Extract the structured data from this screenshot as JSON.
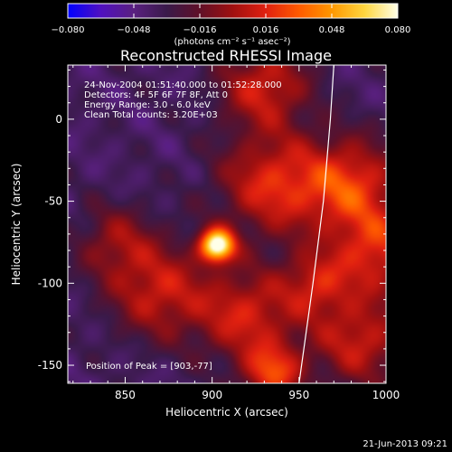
{
  "chart_data": {
    "type": "heatmap",
    "title": "Reconstructed RHESSI Image",
    "xlabel": "Heliocentric X (arcsec)",
    "ylabel": "Heliocentric Y (arcsec)",
    "xlim": [
      817,
      1000
    ],
    "ylim": [
      -161,
      33
    ],
    "x_ticks": [
      850,
      900,
      950,
      1000
    ],
    "y_ticks": [
      0,
      -50,
      -100,
      -150
    ],
    "colorbar": {
      "range": [
        -0.08,
        0.08
      ],
      "ticks": [
        "−0.080",
        "−0.048",
        "−0.016",
        "0.016",
        "0.048",
        "0.080"
      ],
      "unit_text": "(photons cm⁻² s⁻¹ asec⁻²)",
      "colormap": [
        "#0000ff",
        "#5010c0",
        "#5a2080",
        "#3a1a4a",
        "#601028",
        "#a01010",
        "#e02010",
        "#ff5a00",
        "#ff9800",
        "#ffd640",
        "#ffffe8"
      ]
    },
    "annotations": [
      "24-Nov-2004 01:51:40.000 to 01:52:28.000",
      "Detectors: 4F 5F 6F 7F 8F, Att 0",
      "Energy Range: 3.0 - 6.0 keV",
      "Clean      Total counts: 3.20E+03"
    ],
    "peak_label": "Position of Peak = [903,-77]",
    "peak": {
      "x": 903,
      "y": -77,
      "relative_intensity": 1.0
    },
    "emission_sources": [
      {
        "x": 903,
        "y": -77,
        "sigma": 7,
        "intensity": 1.0
      },
      {
        "x": 935,
        "y": -40,
        "sigma": 22,
        "intensity": 0.45
      },
      {
        "x": 980,
        "y": -40,
        "sigma": 20,
        "intensity": 0.48
      },
      {
        "x": 995,
        "y": -80,
        "sigma": 18,
        "intensity": 0.44
      },
      {
        "x": 930,
        "y": 20,
        "sigma": 18,
        "intensity": 0.42
      },
      {
        "x": 870,
        "y": -105,
        "sigma": 20,
        "intensity": 0.4
      },
      {
        "x": 920,
        "y": -120,
        "sigma": 20,
        "intensity": 0.42
      },
      {
        "x": 985,
        "y": -135,
        "sigma": 20,
        "intensity": 0.4
      },
      {
        "x": 935,
        "y": -155,
        "sigma": 12,
        "intensity": 0.48
      },
      {
        "x": 845,
        "y": -75,
        "sigma": 16,
        "intensity": 0.28
      },
      {
        "x": 960,
        "y": -100,
        "sigma": 14,
        "intensity": 0.35
      }
    ],
    "limb_curve": [
      [
        970,
        33
      ],
      [
        968,
        0
      ],
      [
        964,
        -50
      ],
      [
        958,
        -100
      ],
      [
        950,
        -161
      ]
    ],
    "footer_date": "21-Jun-2013 09:21"
  }
}
